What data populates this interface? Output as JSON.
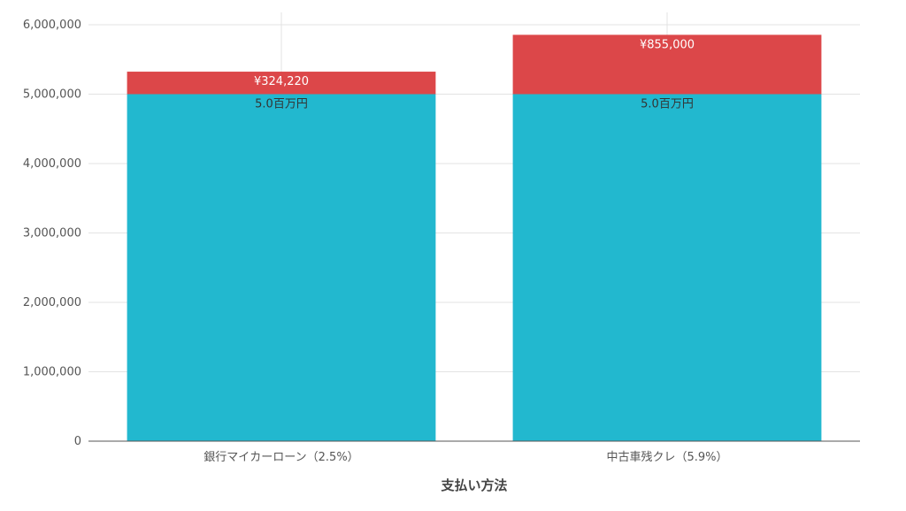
{
  "chart_data": {
    "type": "bar",
    "stacked": true,
    "categories": [
      "銀行マイカーローン（2.5%）",
      "中古車残クレ（5.9%）"
    ],
    "series": [
      {
        "values": [
          5000000,
          5000000
        ],
        "labels": [
          "5.0百万円",
          "5.0百万円"
        ],
        "color": "#22b8cf",
        "label_color": "#333333"
      },
      {
        "values": [
          324220,
          855000
        ],
        "labels": [
          "¥324,220",
          "¥855,000"
        ],
        "color": "#dc4749",
        "label_color": "#ffffff"
      }
    ],
    "xlabel": "支払い方法",
    "ylabel": "",
    "ylim": [
      0,
      6000000
    ],
    "yticks": [
      0,
      1000000,
      2000000,
      3000000,
      4000000,
      5000000,
      6000000
    ],
    "ytick_labels": [
      "0",
      "1,000,000",
      "2,000,000",
      "3,000,000",
      "4,000,000",
      "5,000,000",
      "6,000,000"
    ],
    "grid": true,
    "legend": "none"
  },
  "colors": {
    "grid": "#e3e3e3",
    "axis": "#555555"
  }
}
